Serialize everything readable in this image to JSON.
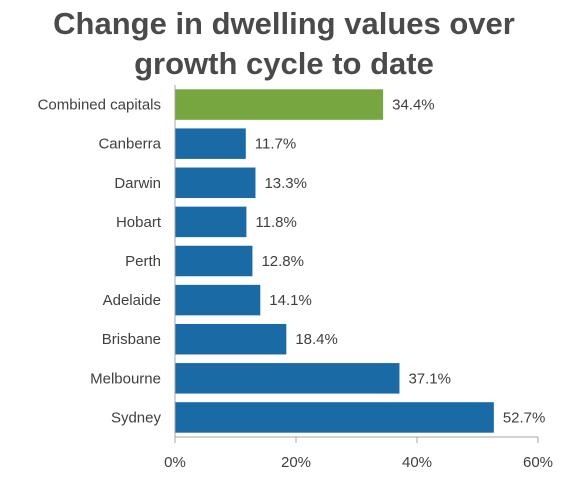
{
  "chart_data": {
    "type": "bar",
    "orientation": "horizontal",
    "title_lines": [
      "Change in dwelling values over",
      "growth cycle to date"
    ],
    "categories": [
      "Combined capitals",
      "Canberra",
      "Darwin",
      "Hobart",
      "Perth",
      "Adelaide",
      "Brisbane",
      "Melbourne",
      "Sydney"
    ],
    "values": [
      34.4,
      11.7,
      13.3,
      11.8,
      12.8,
      14.1,
      18.4,
      37.1,
      52.7
    ],
    "value_labels": [
      "34.4%",
      "11.7%",
      "13.3%",
      "11.8%",
      "12.8%",
      "14.1%",
      "18.4%",
      "37.1%",
      "52.7%"
    ],
    "xlim": [
      0,
      60
    ],
    "x_ticks": [
      0,
      20,
      40,
      60
    ],
    "x_tick_labels": [
      "0%",
      "20%",
      "40%",
      "60%"
    ],
    "xlabel": "",
    "ylabel": "",
    "grid": false,
    "highlight_category": "Combined capitals",
    "colors": {
      "highlight": "#77a640",
      "default": "#1a6aa6",
      "axis": "#a6a6a6",
      "text": "#404040",
      "title": "#4a4a4a"
    }
  }
}
